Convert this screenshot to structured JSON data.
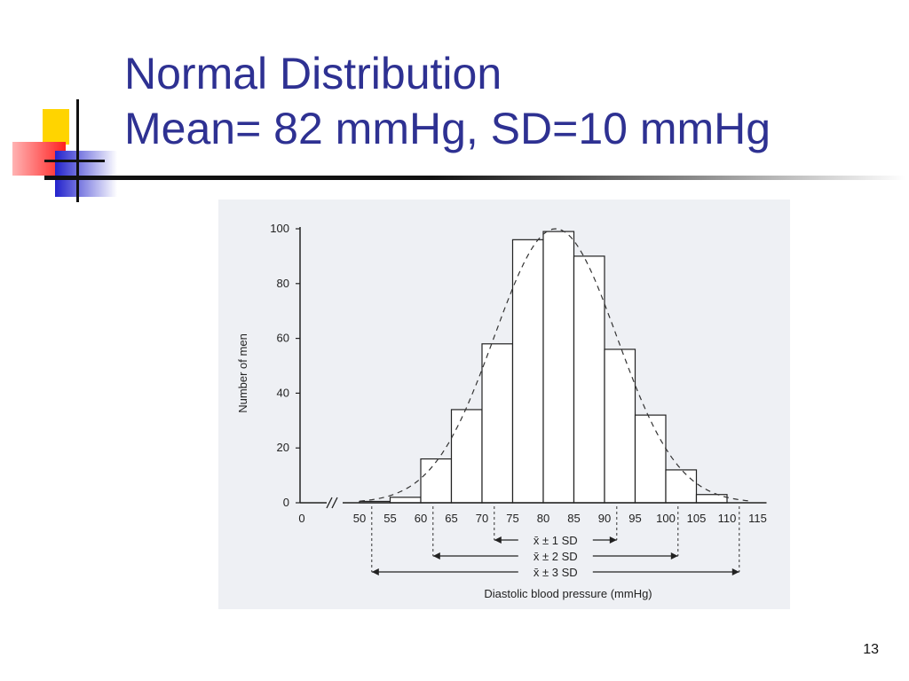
{
  "slide": {
    "title_line1": "Normal Distribution",
    "title_line2": "Mean= 82 mmHg, SD=10 mmHg",
    "page_number": "13"
  },
  "chart_data": {
    "type": "bar",
    "title": "",
    "xlabel": "Diastolic blood pressure (mmHg)",
    "ylabel": "Number of men",
    "xlim": [
      0,
      115
    ],
    "ylim": [
      0,
      100
    ],
    "y_ticks": [
      0,
      20,
      40,
      60,
      80,
      100
    ],
    "x_tick_labels": [
      "0",
      "50",
      "55",
      "60",
      "65",
      "70",
      "75",
      "80",
      "85",
      "90",
      "95",
      "100",
      "105",
      "110",
      "115"
    ],
    "axis_break": true,
    "bin_edges": [
      50,
      55,
      60,
      65,
      70,
      75,
      80,
      85,
      90,
      95,
      100,
      105,
      110
    ],
    "series": [
      {
        "values": [
          0.5,
          2,
          16,
          34,
          58,
          96,
          99,
          90,
          56,
          32,
          12,
          3
        ]
      }
    ],
    "normal_curve": {
      "mean": 82,
      "sd": 10,
      "peak": 100,
      "style": "dashed"
    },
    "sd_annotations": [
      {
        "label": "x̄ ± 1 SD",
        "from": 72,
        "to": 92
      },
      {
        "label": "x̄ ± 2 SD",
        "from": 62,
        "to": 102
      },
      {
        "label": "x̄ ± 3 SD",
        "from": 52,
        "to": 112
      }
    ],
    "grid": false,
    "legend": "none"
  }
}
